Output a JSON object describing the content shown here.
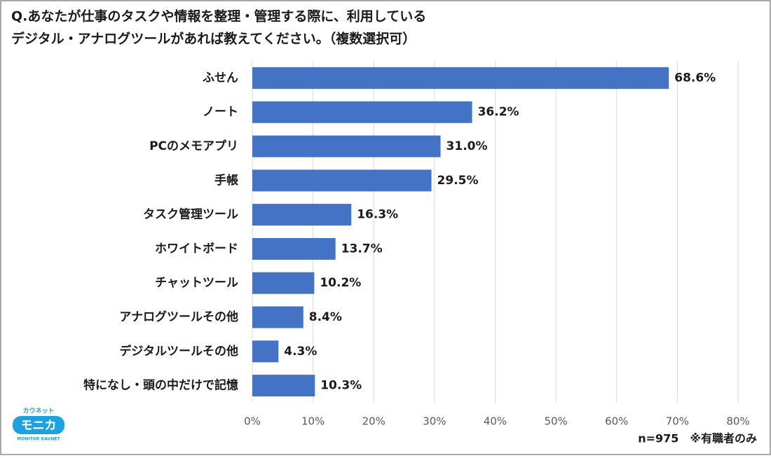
{
  "chart_data": {
    "type": "bar",
    "orientation": "horizontal",
    "title_lines": [
      "Q.あなたが仕事のタスクや情報を整理・管理する際に、利用している",
      "デジタル・アナログツールがあれば教えてください。（複数選択可）"
    ],
    "categories": [
      "ふせん",
      "ノート",
      "PCのメモアプリ",
      "手帳",
      "タスク管理ツール",
      "ホワイトボード",
      "チャットツール",
      "アナログツールその他",
      "デジタルツールその他",
      "特になし・頭の中だけで記憶"
    ],
    "values": [
      68.6,
      36.2,
      31.0,
      29.5,
      16.3,
      13.7,
      10.2,
      8.4,
      4.3,
      10.3
    ],
    "value_labels": [
      "68.6%",
      "36.2%",
      "31.0%",
      "29.5%",
      "16.3%",
      "13.7%",
      "10.2%",
      "8.4%",
      "4.3%",
      "10.3%"
    ],
    "color": "#4472c4",
    "xlim": [
      0,
      80
    ],
    "xticks": [
      {
        "value": 0,
        "label": "0%"
      },
      {
        "value": 10,
        "label": "10%"
      },
      {
        "value": 20,
        "label": "20%"
      },
      {
        "value": 30,
        "label": "30%"
      },
      {
        "value": 40,
        "label": "40%"
      },
      {
        "value": 50,
        "label": "50%"
      },
      {
        "value": 60,
        "label": "60%"
      },
      {
        "value": 70,
        "label": "70%"
      },
      {
        "value": 80,
        "label": "80%"
      }
    ],
    "grid": true,
    "note": "n=975　※有職者のみ"
  },
  "logo": {
    "kana": "カウネット",
    "name": "モニカ",
    "sub": "MONITOR KAUNET"
  }
}
